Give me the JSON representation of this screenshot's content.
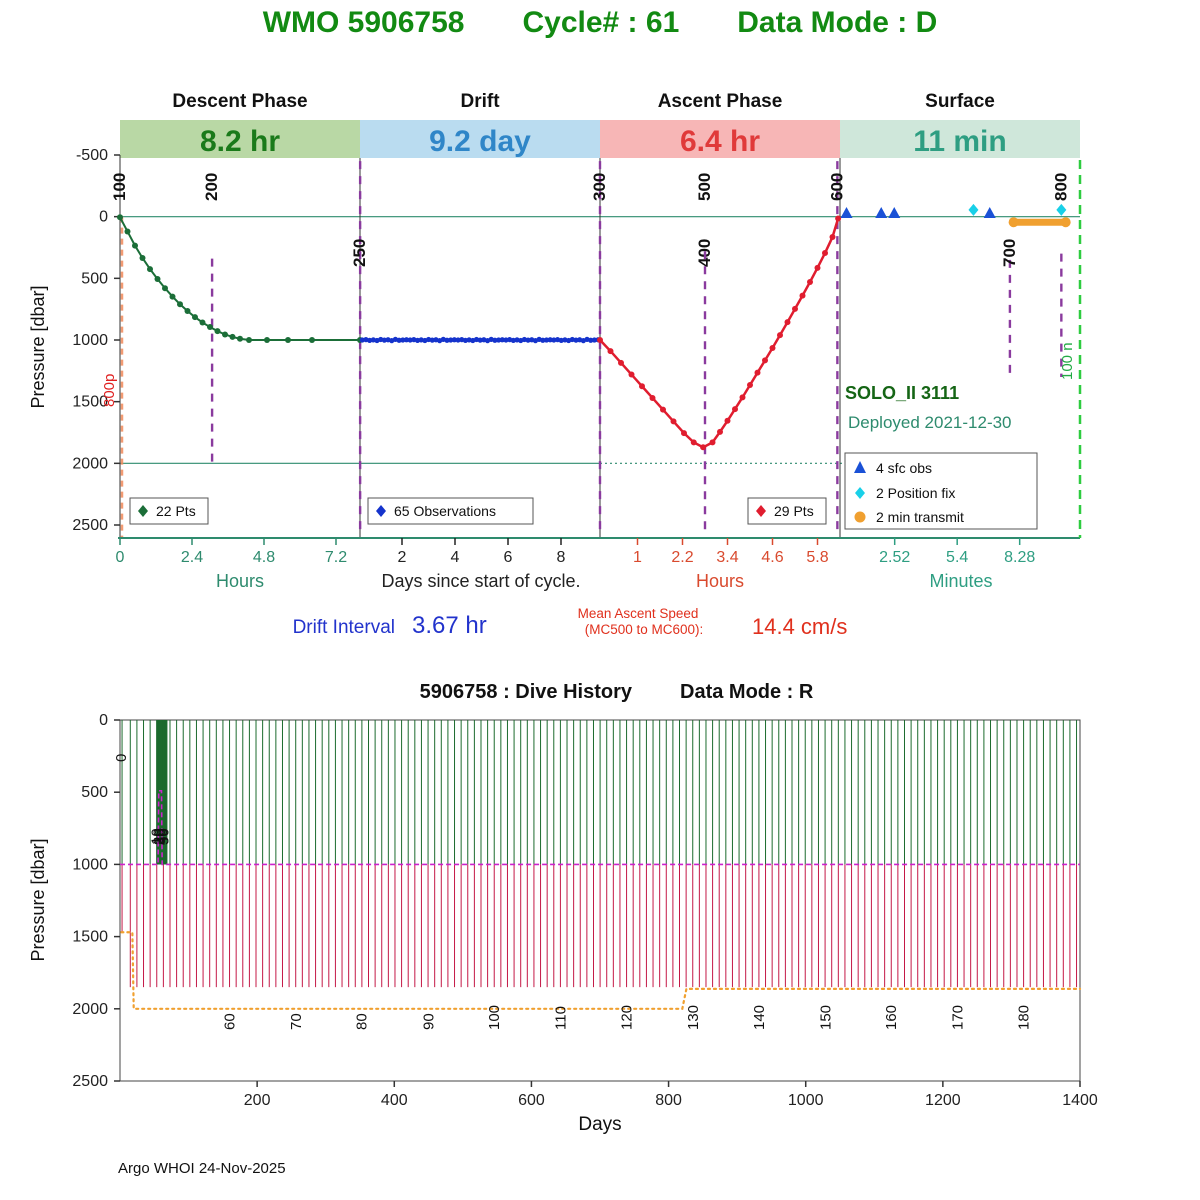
{
  "page": {
    "title_wmo": "WMO 5906758",
    "title_cycle": "Cycle# : 61",
    "title_mode": "Data Mode : D",
    "footer": "Argo WHOI 24-Nov-2025"
  },
  "top_chart": {
    "phases": [
      {
        "duration": "8.2 hr",
        "band_color": "#b9d8a5",
        "text_color": "#1a7a1a"
      },
      {
        "duration": "9.2 day",
        "band_color": "#badcf0",
        "text_color": "#2f86c8"
      },
      {
        "duration": "6.4 hr",
        "band_color": "#f7b6b6",
        "text_color": "#e03a3a"
      },
      {
        "duration": "11 min",
        "band_color": "#cfe7da",
        "text_color": "#2e9e82"
      }
    ],
    "float_label": "SOLO_II 3111",
    "deployed_label": "Deployed 2021-12-30",
    "drift_interval_label": "Drift Interval",
    "drift_interval_value": "3.67 hr",
    "ascent_speed_label1": "Mean Ascent Speed",
    "ascent_speed_label2": "(MC500 to MC600):",
    "ascent_speed_value": "14.4 cm/s",
    "left_rotated_annotation": "800p",
    "right_rotated_annotation": "100 n"
  },
  "chart_data": [
    {
      "type": "line",
      "title": "Cycle 61 phase profile",
      "ylabel": "Pressure [dbar]",
      "ylim": [
        -500,
        2570
      ],
      "y_ticks": [
        -500,
        0,
        500,
        1000,
        1500,
        2000,
        2500
      ],
      "segments": [
        {
          "phase": "Descent Phase",
          "axis_label": "Hours",
          "axis_color": "#2e8b6e",
          "ticks": [
            0,
            2.4,
            4.8,
            7.2
          ]
        },
        {
          "phase": "Drift",
          "axis_label": "Days since start of cycle.",
          "axis_color": "#222222",
          "ticks": [
            2,
            4,
            6,
            8
          ]
        },
        {
          "phase": "Ascent Phase",
          "axis_label": "Hours",
          "axis_color": "#d94a2e",
          "ticks": [
            1,
            2.2,
            3.4,
            4.6,
            5.8
          ]
        },
        {
          "phase": "Surface",
          "axis_label": "Minutes",
          "axis_color": "#2e9e82",
          "ticks": [
            2.52,
            5.4,
            8.28
          ]
        }
      ],
      "reference_lines": {
        "surface_pressure": 0,
        "park_pressure": 2000
      },
      "counters": [
        {
          "label": "100",
          "seg": 0,
          "v": 0,
          "row": "top"
        },
        {
          "label": "200",
          "seg": 0,
          "v": 3.07,
          "row": "top",
          "line": [
            340,
            2040
          ]
        },
        {
          "label": "250",
          "seg": 1,
          "v": 0.42,
          "row": "mid",
          "line": [
            -450,
            2570
          ]
        },
        {
          "label": "300",
          "seg": 2,
          "v": 0,
          "row": "top",
          "line": [
            -450,
            2570
          ]
        },
        {
          "label": "400",
          "seg": 2,
          "v": 2.8,
          "row": "mid"
        },
        {
          "label": "500",
          "seg": 2,
          "v": 2.8,
          "row": "top",
          "line": [
            280,
            2570
          ]
        },
        {
          "label": "600",
          "seg": 2,
          "v": 6.33,
          "row": "top",
          "line": [
            -450,
            2570
          ]
        },
        {
          "label": "700",
          "seg": 3,
          "v": 7.83,
          "row": "mid",
          "line": [
            350,
            1300
          ]
        },
        {
          "label": "800",
          "seg": 3,
          "v": 10.2,
          "row": "top",
          "line": [
            300,
            1300
          ]
        }
      ],
      "descent": {
        "legend": "22 Pts",
        "color": "#1b6e38",
        "x_unit": "hours",
        "points": [
          [
            0,
            5
          ],
          [
            0.25,
            120
          ],
          [
            0.5,
            235
          ],
          [
            0.75,
            335
          ],
          [
            1,
            425
          ],
          [
            1.25,
            505
          ],
          [
            1.5,
            580
          ],
          [
            1.75,
            648
          ],
          [
            2,
            710
          ],
          [
            2.25,
            765
          ],
          [
            2.5,
            815
          ],
          [
            2.75,
            858
          ],
          [
            3,
            895
          ],
          [
            3.25,
            928
          ],
          [
            3.5,
            955
          ],
          [
            3.75,
            975
          ],
          [
            4,
            990
          ],
          [
            4.3,
            1000
          ],
          [
            4.9,
            1000
          ],
          [
            5.6,
            1000
          ],
          [
            6.4,
            1000
          ],
          [
            8,
            1000
          ]
        ]
      },
      "drift": {
        "legend": "65 Observations",
        "color": "#1533cc",
        "x_unit": "days",
        "day_start": 0.5,
        "day_end": 9.4,
        "pressures": [
          1000,
          997,
          1003,
          999,
          1004,
          996,
          1001,
          998,
          1005,
          995,
          1002,
          1000,
          998,
          1000,
          997,
          1003,
          999,
          1004,
          996,
          1001,
          998,
          1005,
          995,
          1002,
          1000,
          998,
          1000,
          997,
          1003,
          999,
          1004,
          996,
          1001,
          998,
          1005,
          995,
          1002,
          1000,
          998,
          1000,
          997,
          1003,
          999,
          1004,
          996,
          1001,
          998,
          1005,
          995,
          1002,
          1000,
          998,
          1000,
          997,
          1003,
          999,
          1004,
          996,
          1001,
          998,
          1005,
          995,
          1002,
          1000,
          998
        ]
      },
      "ascent": {
        "legend": "29 Pts",
        "color": "#e01d2f",
        "x_unit": "hours",
        "points": [
          [
            0,
            1000
          ],
          [
            0.28,
            1090
          ],
          [
            0.56,
            1185
          ],
          [
            0.84,
            1280
          ],
          [
            1.12,
            1375
          ],
          [
            1.4,
            1470
          ],
          [
            1.68,
            1565
          ],
          [
            1.96,
            1660
          ],
          [
            2.24,
            1755
          ],
          [
            2.5,
            1830
          ],
          [
            2.75,
            1870
          ],
          [
            3,
            1830
          ],
          [
            3.2,
            1745
          ],
          [
            3.4,
            1655
          ],
          [
            3.6,
            1560
          ],
          [
            3.8,
            1465
          ],
          [
            4,
            1365
          ],
          [
            4.2,
            1265
          ],
          [
            4.4,
            1165
          ],
          [
            4.6,
            1065
          ],
          [
            4.8,
            960
          ],
          [
            5,
            855
          ],
          [
            5.2,
            748
          ],
          [
            5.4,
            640
          ],
          [
            5.6,
            530
          ],
          [
            5.8,
            415
          ],
          [
            6,
            295
          ],
          [
            6.2,
            165
          ],
          [
            6.35,
            15
          ]
        ]
      },
      "surface": {
        "sfc_obs": {
          "legend": "4 sfc obs",
          "color": "#1a51d6",
          "minutes": [
            0.3,
            1.9,
            2.5,
            6.9
          ],
          "pressure": -30
        },
        "position_fix": {
          "legend": "2 Position fix",
          "color": "#18d0e8",
          "minutes": [
            6.15,
            10.2
          ],
          "pressure": -55
        },
        "transmit": {
          "legend": "2 min transmit",
          "color": "#f0a030",
          "minutes": [
            8.0,
            10.4
          ],
          "pressure": 45
        }
      }
    },
    {
      "type": "line",
      "title": "5906758 : Dive History",
      "data_mode_label": "Data Mode : R",
      "xlabel": "Days",
      "ylabel": "Pressure [dbar]",
      "xlim": [
        0,
        1400
      ],
      "ylim": [
        0,
        2500
      ],
      "x_ticks": [
        200,
        400,
        600,
        800,
        1000,
        1200,
        1400
      ],
      "y_ticks": [
        0,
        500,
        1000,
        1500,
        2000,
        2500
      ],
      "dive_color_upper": "#1c6b2e",
      "dive_color_lower": "#c41846",
      "first_dive": {
        "day": 3,
        "park": 1000,
        "deep": 1470
      },
      "regular_dives": {
        "start_day": 15,
        "end_day": 1396,
        "interval_days": 9.65,
        "park": 1000,
        "deep": 1850
      },
      "burst_dives": {
        "start_day": 54,
        "end_day": 68,
        "interval_days": 0.5,
        "depth": 1000
      },
      "park_line": {
        "pressure": 1000,
        "color": "#cc22cc",
        "spike_days": [
          55.5,
          56.5,
          60.5,
          61.5
        ],
        "spike_pressure": 490
      },
      "deep_line": {
        "color": "#f0a030",
        "points": [
          [
            2,
            1470
          ],
          [
            18,
            1470
          ],
          [
            20,
            2000
          ],
          [
            820,
            2000
          ],
          [
            826,
            1862
          ],
          [
            1400,
            1862
          ]
        ]
      },
      "cycle_labels": [
        {
          "label": "0",
          "day": 3,
          "row": "top"
        },
        {
          "label": "10",
          "day": 55,
          "row": "mid"
        },
        {
          "label": "20",
          "day": 57.5,
          "row": "mid"
        },
        {
          "label": "30",
          "day": 60,
          "row": "mid"
        },
        {
          "label": "40",
          "day": 62.5,
          "row": "mid"
        },
        {
          "label": "50",
          "day": 65,
          "row": "mid"
        },
        {
          "label": "60",
          "day": 161,
          "row": "bot"
        },
        {
          "label": "70",
          "day": 258,
          "row": "bot"
        },
        {
          "label": "80",
          "day": 354,
          "row": "bot"
        },
        {
          "label": "90",
          "day": 451,
          "row": "bot"
        },
        {
          "label": "100",
          "day": 547,
          "row": "bot"
        },
        {
          "label": "110",
          "day": 644,
          "row": "bot"
        },
        {
          "label": "120",
          "day": 740,
          "row": "bot"
        },
        {
          "label": "130",
          "day": 837,
          "row": "bot"
        },
        {
          "label": "140",
          "day": 933,
          "row": "bot"
        },
        {
          "label": "150",
          "day": 1030,
          "row": "bot"
        },
        {
          "label": "160",
          "day": 1126,
          "row": "bot"
        },
        {
          "label": "170",
          "day": 1223,
          "row": "bot"
        },
        {
          "label": "180",
          "day": 1319,
          "row": "bot"
        }
      ]
    }
  ]
}
